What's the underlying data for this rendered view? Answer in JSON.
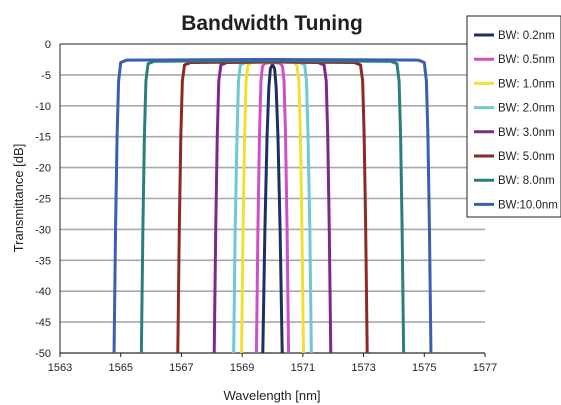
{
  "chart_data": {
    "type": "line",
    "title": "Bandwidth Tuning",
    "xlabel": "Wavelength [nm]",
    "ylabel": "Transmittance [dB]",
    "xlim": [
      1563,
      1577
    ],
    "ylim": [
      -50,
      0
    ],
    "x_ticks": [
      "1563",
      "1565",
      "1567",
      "1569",
      "1571",
      "1573",
      "1575",
      "1577"
    ],
    "y_ticks": [
      "0",
      "-5",
      "-10",
      "-15",
      "-20",
      "-25",
      "-30",
      "-35",
      "-40",
      "-45",
      "-50"
    ],
    "grid": "horizontal",
    "legend_position": "top-right",
    "series": [
      {
        "name": "BW: 0.2nm",
        "color": "#1f2f5f",
        "points": [
          [
            1569.68,
            -50
          ],
          [
            1569.75,
            -30
          ],
          [
            1569.82,
            -15
          ],
          [
            1569.88,
            -7
          ],
          [
            1569.93,
            -4
          ],
          [
            1570.0,
            -3.3
          ],
          [
            1570.07,
            -4
          ],
          [
            1570.12,
            -7
          ],
          [
            1570.18,
            -15
          ],
          [
            1570.25,
            -30
          ],
          [
            1570.32,
            -50
          ]
        ]
      },
      {
        "name": "BW: 0.5nm",
        "color": "#d04fc2",
        "points": [
          [
            1569.47,
            -50
          ],
          [
            1569.52,
            -30
          ],
          [
            1569.57,
            -15
          ],
          [
            1569.62,
            -6
          ],
          [
            1569.67,
            -3.6
          ],
          [
            1569.75,
            -3.1
          ],
          [
            1570.0,
            -3.0
          ],
          [
            1570.25,
            -3.1
          ],
          [
            1570.33,
            -3.6
          ],
          [
            1570.38,
            -6
          ],
          [
            1570.43,
            -15
          ],
          [
            1570.48,
            -30
          ],
          [
            1570.53,
            -50
          ]
        ]
      },
      {
        "name": "BW: 1.0nm",
        "color": "#f0e030",
        "points": [
          [
            1568.98,
            -50
          ],
          [
            1569.03,
            -30
          ],
          [
            1569.08,
            -15
          ],
          [
            1569.13,
            -6
          ],
          [
            1569.19,
            -3.5
          ],
          [
            1569.3,
            -3.0
          ],
          [
            1570.0,
            -2.9
          ],
          [
            1570.7,
            -3.0
          ],
          [
            1570.81,
            -3.5
          ],
          [
            1570.87,
            -6
          ],
          [
            1570.92,
            -15
          ],
          [
            1570.97,
            -30
          ],
          [
            1571.02,
            -50
          ]
        ]
      },
      {
        "name": "BW: 2.0nm",
        "color": "#6fc8d3",
        "points": [
          [
            1568.72,
            -50
          ],
          [
            1568.77,
            -30
          ],
          [
            1568.83,
            -15
          ],
          [
            1568.88,
            -6
          ],
          [
            1568.94,
            -3.4
          ],
          [
            1569.1,
            -3.0
          ],
          [
            1570.0,
            -2.9
          ],
          [
            1570.9,
            -3.0
          ],
          [
            1571.06,
            -3.4
          ],
          [
            1571.12,
            -6
          ],
          [
            1571.17,
            -15
          ],
          [
            1571.23,
            -30
          ],
          [
            1571.28,
            -50
          ]
        ]
      },
      {
        "name": "BW: 3.0nm",
        "color": "#7a2a86",
        "points": [
          [
            1568.08,
            -50
          ],
          [
            1568.13,
            -30
          ],
          [
            1568.18,
            -15
          ],
          [
            1568.23,
            -6
          ],
          [
            1568.3,
            -3.4
          ],
          [
            1568.5,
            -3.0
          ],
          [
            1570.0,
            -2.9
          ],
          [
            1571.5,
            -3.0
          ],
          [
            1571.7,
            -3.4
          ],
          [
            1571.77,
            -6
          ],
          [
            1571.82,
            -15
          ],
          [
            1571.87,
            -30
          ],
          [
            1571.92,
            -50
          ]
        ]
      },
      {
        "name": "BW: 5.0nm",
        "color": "#8b2a24",
        "points": [
          [
            1566.88,
            -50
          ],
          [
            1566.93,
            -30
          ],
          [
            1566.98,
            -15
          ],
          [
            1567.03,
            -6
          ],
          [
            1567.1,
            -3.4
          ],
          [
            1567.3,
            -3.0
          ],
          [
            1570.0,
            -2.9
          ],
          [
            1572.7,
            -3.0
          ],
          [
            1572.9,
            -3.4
          ],
          [
            1572.97,
            -6
          ],
          [
            1573.02,
            -15
          ],
          [
            1573.07,
            -30
          ],
          [
            1573.12,
            -50
          ]
        ]
      },
      {
        "name": "BW: 8.0nm",
        "color": "#2a7f78",
        "points": [
          [
            1565.68,
            -50
          ],
          [
            1565.73,
            -30
          ],
          [
            1565.78,
            -15
          ],
          [
            1565.83,
            -6
          ],
          [
            1565.9,
            -3.2
          ],
          [
            1566.1,
            -2.8
          ],
          [
            1570.0,
            -2.7
          ],
          [
            1573.9,
            -2.8
          ],
          [
            1574.1,
            -3.2
          ],
          [
            1574.17,
            -6
          ],
          [
            1574.22,
            -15
          ],
          [
            1574.27,
            -30
          ],
          [
            1574.32,
            -50
          ]
        ]
      },
      {
        "name": "BW:10.0nm",
        "color": "#3a5fb0",
        "points": [
          [
            1564.78,
            -50
          ],
          [
            1564.83,
            -30
          ],
          [
            1564.88,
            -15
          ],
          [
            1564.93,
            -6
          ],
          [
            1565.0,
            -3.0
          ],
          [
            1565.2,
            -2.6
          ],
          [
            1570.0,
            -2.5
          ],
          [
            1574.8,
            -2.6
          ],
          [
            1575.0,
            -3.0
          ],
          [
            1575.07,
            -6
          ],
          [
            1575.12,
            -15
          ],
          [
            1575.17,
            -30
          ],
          [
            1575.22,
            -50
          ]
        ]
      }
    ]
  }
}
